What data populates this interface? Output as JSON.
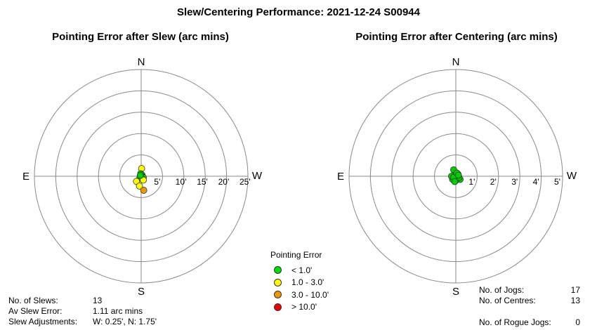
{
  "title": "Slew/Centering Performance: 2021-12-24 S00944",
  "chart_data": [
    {
      "type": "scatter",
      "polar": true,
      "title": "Pointing Error after Slew (arc mins)",
      "directions": {
        "north": "N",
        "south": "S",
        "east": "E",
        "west": "W"
      },
      "ring_labels": [
        "5'",
        "10'",
        "15'",
        "20'",
        "25'"
      ],
      "ring_values": [
        5,
        10,
        15,
        20,
        25
      ],
      "max_radius": 25,
      "points": [
        {
          "x": 0.1,
          "y": 1.8,
          "color": "#ffff00"
        },
        {
          "x": -0.1,
          "y": 0.6,
          "color": "#00cc00"
        },
        {
          "x": 0.2,
          "y": 0.3,
          "color": "#00cc00"
        },
        {
          "x": 0.0,
          "y": 0.0,
          "color": "#00cc00"
        },
        {
          "x": 0.3,
          "y": -0.1,
          "color": "#00cc00"
        },
        {
          "x": 0.5,
          "y": -0.3,
          "color": "#00cc00"
        },
        {
          "x": -0.3,
          "y": -0.4,
          "color": "#00cc00"
        },
        {
          "x": 0.1,
          "y": -0.5,
          "color": "#00cc00"
        },
        {
          "x": -1.1,
          "y": -1.2,
          "color": "#ffff00"
        },
        {
          "x": 0.5,
          "y": -0.9,
          "color": "#ffff00"
        },
        {
          "x": -0.4,
          "y": -2.3,
          "color": "#ffff00"
        },
        {
          "x": 0.6,
          "y": -3.3,
          "color": "#ee9900"
        },
        {
          "x": -0.2,
          "y": 0.2,
          "color": "#00cc00"
        }
      ]
    },
    {
      "type": "scatter",
      "polar": true,
      "title": "Pointing Error after Centering (arc mins)",
      "directions": {
        "north": "N",
        "south": "S",
        "east": "E",
        "west": "W"
      },
      "ring_labels": [
        "1'",
        "2'",
        "3'",
        "4'",
        "5'"
      ],
      "ring_values": [
        1,
        2,
        3,
        4,
        5
      ],
      "max_radius": 5,
      "points": [
        {
          "x": -0.1,
          "y": 0.3,
          "color": "#00cc00"
        },
        {
          "x": 0.1,
          "y": 0.1,
          "color": "#00cc00"
        },
        {
          "x": -0.05,
          "y": 0.05,
          "color": "#00cc00"
        },
        {
          "x": -0.15,
          "y": -0.15,
          "color": "#00cc00"
        },
        {
          "x": 0.05,
          "y": -0.1,
          "color": "#00cc00"
        },
        {
          "x": -0.2,
          "y": 0.0,
          "color": "#00cc00"
        },
        {
          "x": 0.2,
          "y": -0.15,
          "color": "#00cc00"
        },
        {
          "x": 0.0,
          "y": -0.2,
          "color": "#00cc00"
        },
        {
          "x": 0.15,
          "y": -0.05,
          "color": "#00cc00"
        },
        {
          "x": -0.1,
          "y": -0.05,
          "color": "#00cc00"
        },
        {
          "x": 0.05,
          "y": 0.15,
          "color": "#00cc00"
        },
        {
          "x": -0.05,
          "y": -0.25,
          "color": "#00cc00"
        },
        {
          "x": 0.12,
          "y": 0.05,
          "color": "#00cc00"
        }
      ]
    }
  ],
  "legend": {
    "title": "Pointing Error",
    "items": [
      {
        "label": "< 1.0'",
        "color": "#00dd00"
      },
      {
        "label": "1.0 - 3.0'",
        "color": "#ffff00"
      },
      {
        "label": "3.0 - 10.0'",
        "color": "#ee9900"
      },
      {
        "label": "> 10.0'",
        "color": "#ee0000"
      }
    ]
  },
  "stats_left": {
    "slews_label": "No. of Slews:",
    "slews_value": "13",
    "av_error_label": "Av Slew Error:",
    "av_error_value": "1.11 arc mins",
    "adjust_label": "Slew Adjustments:",
    "adjust_value": "W: 0.25', N: 1.75'"
  },
  "stats_right": {
    "jogs_label": "No. of Jogs:",
    "jogs_value": "17",
    "centres_label": "No. of Centres:",
    "centres_value": "13",
    "rogue_label": "No. of Rogue Jogs:",
    "rogue_value": "0"
  }
}
